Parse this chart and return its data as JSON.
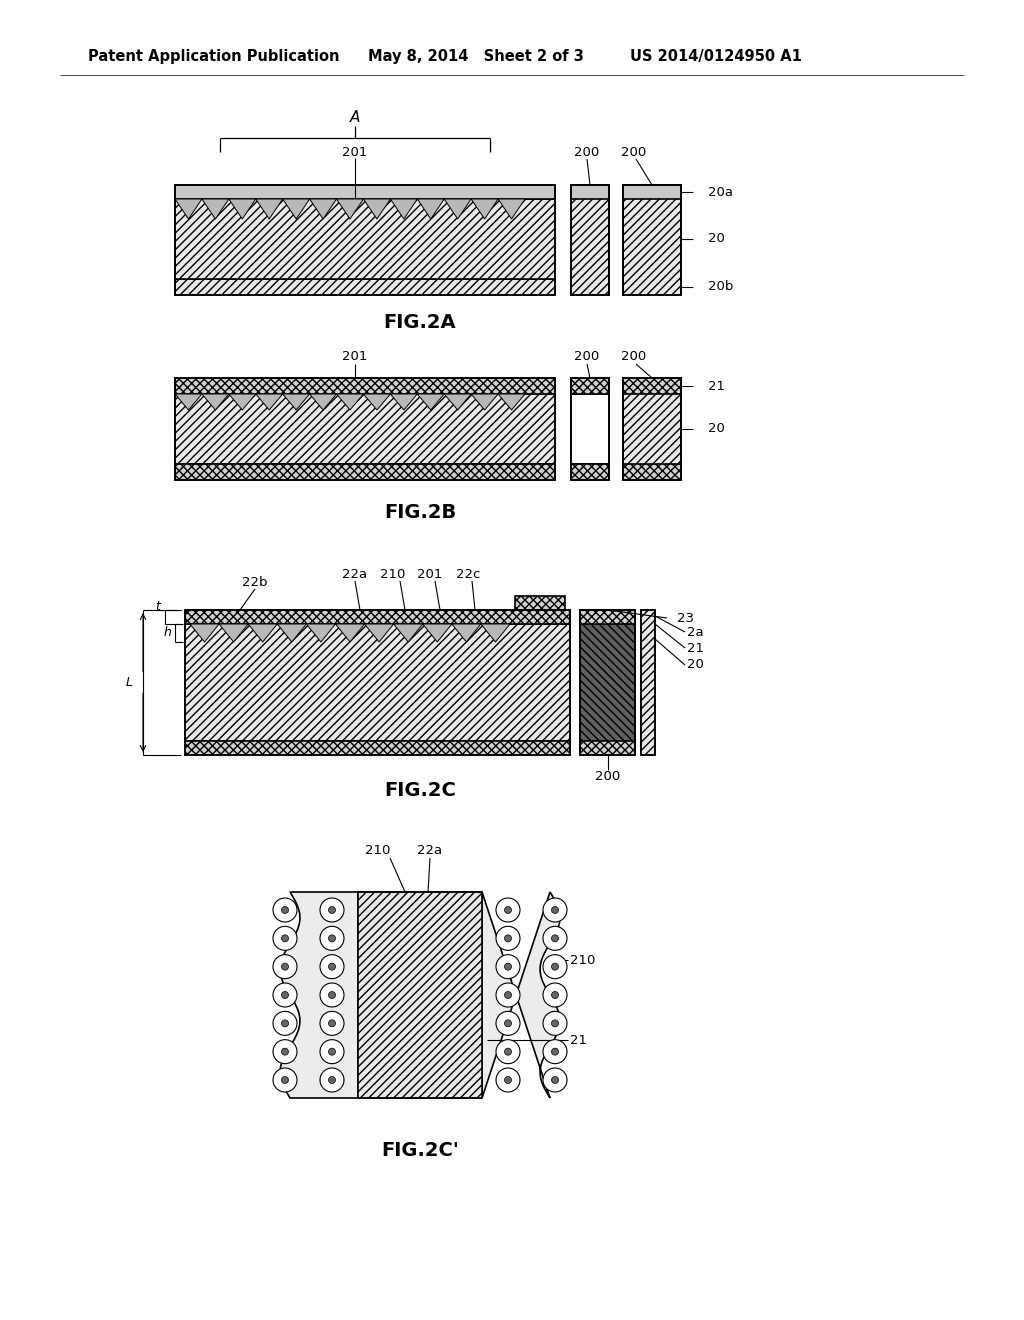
{
  "bg_color": "#ffffff",
  "header_text": "Patent Application Publication",
  "header_date": "May 8, 2014   Sheet 2 of 3",
  "header_patent": "US 2014/0124950 A1",
  "fig2a_label": "FIG.2A",
  "fig2b_label": "FIG.2B",
  "fig2c_label": "FIG.2C",
  "fig2cp_label": "FIG.2C'",
  "line_color": "#000000",
  "hatch_light": "////",
  "hatch_cross": "xxxx",
  "hatch_back": "\\\\\\\\",
  "fc_main": "#e8e8e8",
  "fc_cross": "#d0d0d0",
  "fc_dark": "#555555",
  "fc_white": "#ffffff"
}
